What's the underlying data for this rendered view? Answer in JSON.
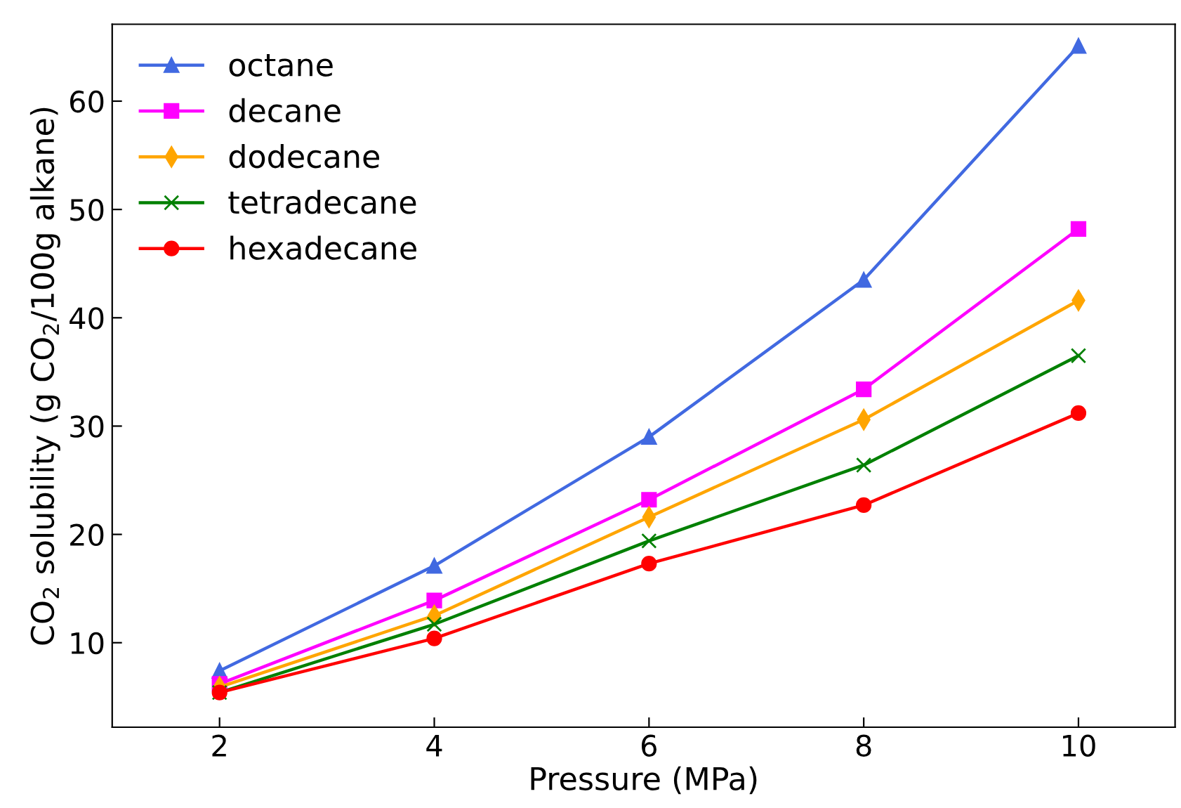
{
  "chart_data": {
    "type": "line",
    "xlabel": "Pressure (MPa)",
    "ylabel": "CO$_{2}$ solubility (g CO$_{2}$/100g alkane)",
    "x": [
      2,
      4,
      6,
      8,
      10
    ],
    "series": [
      {
        "name": "octane",
        "color": "#4169e1",
        "marker": "triangle",
        "values": [
          7.4,
          17.1,
          29.0,
          43.5,
          65.1
        ]
      },
      {
        "name": "decane",
        "color": "#ff00ff",
        "marker": "square",
        "values": [
          6.2,
          13.9,
          23.2,
          33.4,
          48.2
        ]
      },
      {
        "name": "dodecane",
        "color": "#ffa500",
        "marker": "diamond",
        "values": [
          5.9,
          12.5,
          21.6,
          30.6,
          41.6
        ]
      },
      {
        "name": "tetradecane",
        "color": "#008000",
        "marker": "cross",
        "values": [
          5.4,
          11.7,
          19.4,
          26.4,
          36.5
        ]
      },
      {
        "name": "hexadecane",
        "color": "#ff0000",
        "marker": "circle",
        "values": [
          5.4,
          10.4,
          17.3,
          22.7,
          31.2
        ]
      }
    ],
    "xlim": [
      1,
      10.9
    ],
    "ylim": [
      2.2,
      67.1
    ],
    "xticks": [
      2,
      4,
      6,
      8,
      10
    ],
    "yticks": [
      10,
      20,
      30,
      40,
      50,
      60
    ],
    "grid": false,
    "legend": "top left"
  }
}
